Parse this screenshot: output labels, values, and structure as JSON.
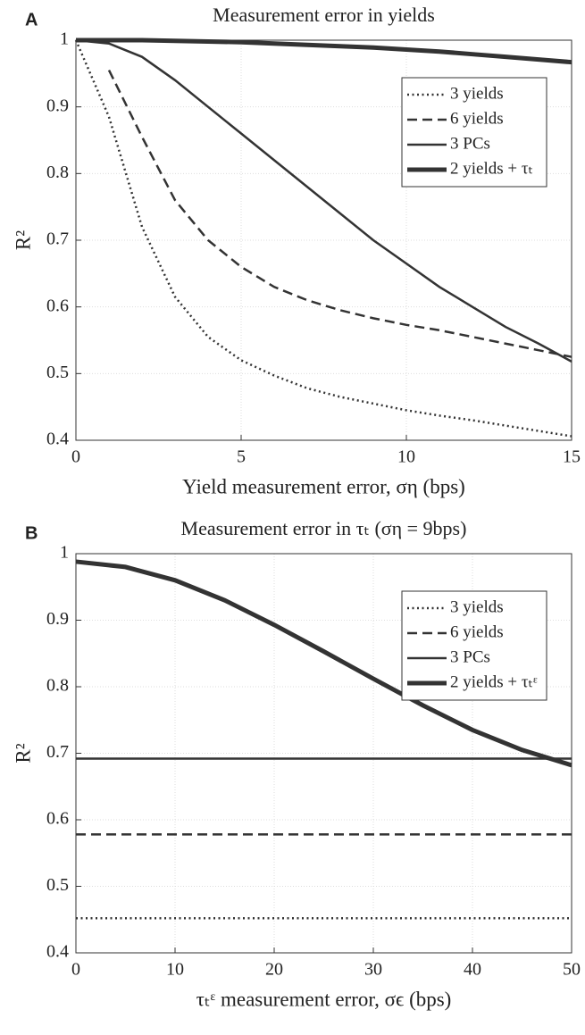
{
  "chart_data": [
    {
      "type": "line",
      "panel_label": "A",
      "title": "Measurement error in yields",
      "x_label": "Yield measurement error, ση (bps)",
      "y_label": "R²",
      "x": [
        0,
        1,
        2,
        3,
        4,
        5,
        6,
        7,
        8,
        9,
        10,
        11,
        12,
        13,
        14,
        15
      ],
      "xlim": [
        0,
        15
      ],
      "xticks": [
        0,
        5,
        10,
        15
      ],
      "ylim": [
        0.4,
        1
      ],
      "yticks": [
        0.4,
        0.5,
        0.6,
        0.7,
        0.8,
        0.9,
        1
      ],
      "grid": true,
      "legend": "upper right",
      "series": [
        {
          "name": "3 yields",
          "color": "#333333",
          "linestyle": "dotted",
          "linewidth": 2.5,
          "values": [
            1.0,
            0.885,
            0.72,
            0.615,
            0.555,
            0.52,
            0.497,
            0.478,
            0.465,
            0.455,
            0.445,
            0.437,
            0.43,
            0.422,
            0.414,
            0.406
          ]
        },
        {
          "name": "6 yields",
          "color": "#333333",
          "linestyle": "dashed",
          "linewidth": 2.5,
          "values": [
            null,
            0.955,
            0.855,
            0.76,
            0.7,
            0.66,
            0.63,
            0.61,
            0.595,
            0.583,
            0.573,
            0.565,
            0.555,
            0.545,
            0.535,
            0.525
          ]
        },
        {
          "name": "3 PCs",
          "color": "#333333",
          "linestyle": "solid",
          "linewidth": 2.5,
          "values": [
            1.0,
            0.995,
            0.975,
            0.94,
            0.9,
            0.86,
            0.82,
            0.78,
            0.74,
            0.7,
            0.665,
            0.63,
            0.6,
            0.57,
            0.545,
            0.518
          ]
        },
        {
          "name": "2 yields + τₜ",
          "color": "#333333",
          "linestyle": "solid",
          "linewidth": 5,
          "values": [
            1.0,
            1.0,
            1.0,
            0.999,
            0.998,
            0.997,
            0.995,
            0.993,
            0.991,
            0.989,
            0.986,
            0.983,
            0.979,
            0.975,
            0.971,
            0.967
          ]
        }
      ]
    },
    {
      "type": "line",
      "panel_label": "B",
      "title": "Measurement error in τₜ (ση = 9bps)",
      "x_label": "τₜᵋ measurement error, σϵ (bps)",
      "y_label": "R²",
      "x": [
        0,
        5,
        10,
        15,
        20,
        25,
        30,
        35,
        40,
        45,
        50
      ],
      "xlim": [
        0,
        50
      ],
      "xticks": [
        0,
        10,
        20,
        30,
        40,
        50
      ],
      "ylim": [
        0.4,
        1
      ],
      "yticks": [
        0.4,
        0.5,
        0.6,
        0.7,
        0.8,
        0.9,
        1
      ],
      "grid": true,
      "legend": "upper right",
      "series": [
        {
          "name": "3 yields",
          "color": "#333333",
          "linestyle": "dotted",
          "linewidth": 2.5,
          "values": [
            0.452,
            0.452,
            0.452,
            0.452,
            0.452,
            0.452,
            0.452,
            0.452,
            0.452,
            0.452,
            0.452
          ]
        },
        {
          "name": "6 yields",
          "color": "#333333",
          "linestyle": "dashed",
          "linewidth": 2.5,
          "values": [
            0.578,
            0.578,
            0.578,
            0.578,
            0.578,
            0.578,
            0.578,
            0.578,
            0.578,
            0.578,
            0.578
          ]
        },
        {
          "name": "3 PCs",
          "color": "#333333",
          "linestyle": "solid",
          "linewidth": 2.5,
          "values": [
            0.692,
            0.692,
            0.692,
            0.692,
            0.692,
            0.692,
            0.692,
            0.692,
            0.692,
            0.692,
            0.692
          ]
        },
        {
          "name": "2 yields + τₜᵋ",
          "color": "#333333",
          "linestyle": "solid",
          "linewidth": 5,
          "values": [
            0.988,
            0.98,
            0.96,
            0.93,
            0.893,
            0.853,
            0.812,
            0.772,
            0.735,
            0.705,
            0.682
          ]
        }
      ]
    }
  ]
}
